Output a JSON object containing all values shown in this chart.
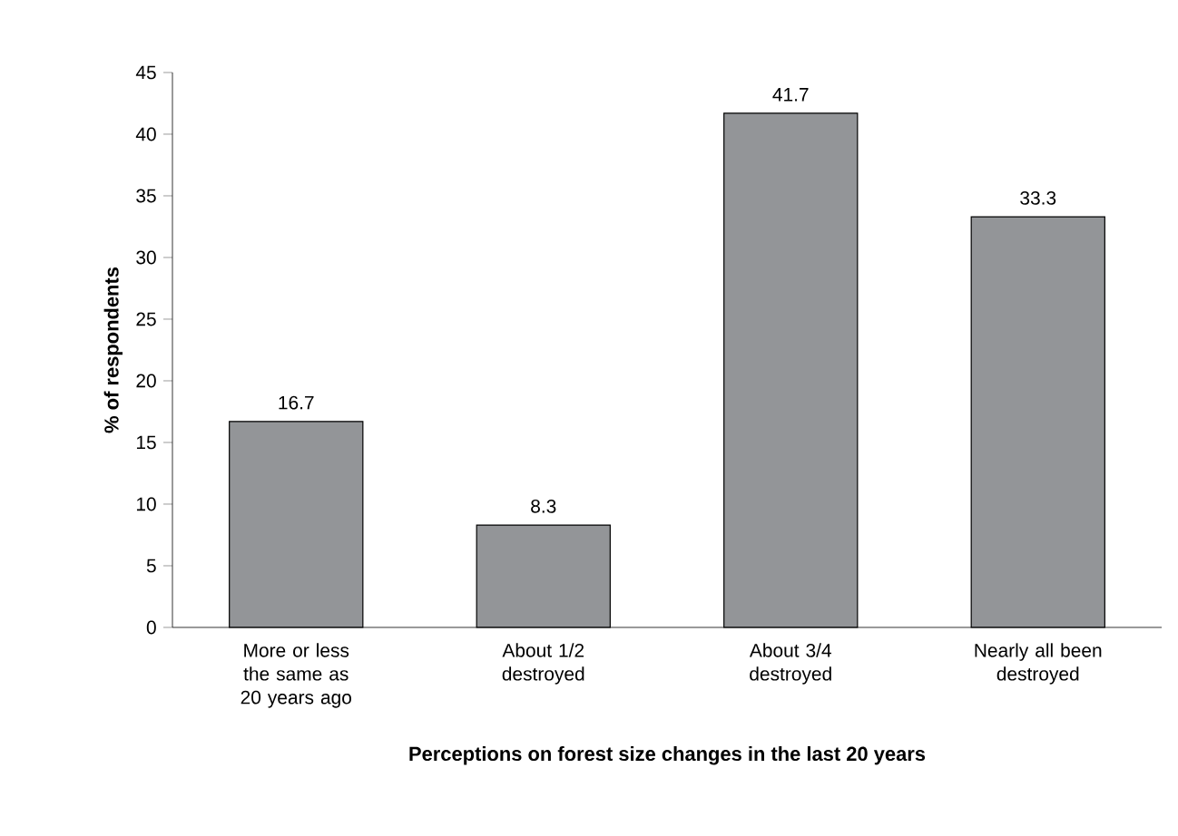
{
  "chart_data": {
    "type": "bar",
    "categories": [
      "More or less the same as 20 years ago",
      "About 1/2 destroyed",
      "About 3/4 destroyed",
      "Nearly all been destroyed"
    ],
    "values": [
      16.7,
      8.3,
      41.7,
      33.3
    ],
    "color": "#939598",
    "data_labels": true,
    "xlabel": "Perceptions on forest size changes in the last 20 years",
    "ylabel": "% of respondents",
    "ylim": [
      0,
      45
    ],
    "yticks": [
      0,
      5,
      10,
      15,
      20,
      25,
      30,
      35,
      40,
      45
    ],
    "grid": false
  }
}
